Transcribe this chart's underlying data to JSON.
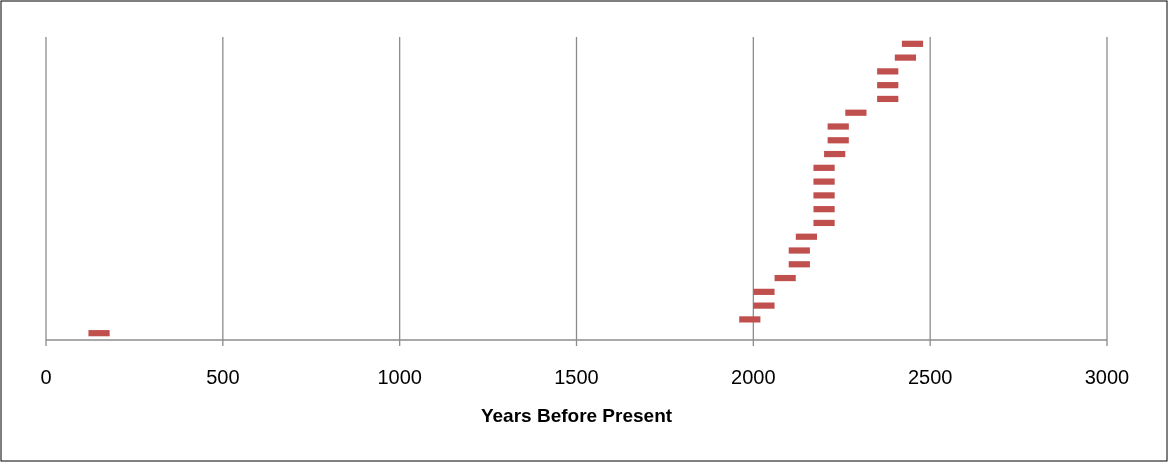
{
  "chart_data": {
    "type": "bar",
    "orientation": "horizontal",
    "xlabel": "Years Before Present",
    "categories": [
      null,
      null,
      null,
      null,
      null,
      null,
      null,
      null,
      null,
      null,
      null,
      null,
      null,
      null,
      null,
      null,
      null,
      null,
      null,
      null,
      null,
      null
    ],
    "base": [
      2420,
      2400,
      2350,
      2350,
      2350,
      2260,
      2210,
      2210,
      2200,
      2170,
      2170,
      2170,
      2170,
      2170,
      2120,
      2100,
      2100,
      2060,
      2000,
      2000,
      1960,
      120
    ],
    "values": [
      60,
      60,
      60,
      60,
      60,
      60,
      60,
      60,
      60,
      60,
      60,
      60,
      60,
      60,
      60,
      60,
      60,
      60,
      60,
      60,
      60,
      60
    ],
    "color": "#c0504d",
    "xlim": [
      0,
      3000
    ],
    "xticks": [
      0,
      500,
      1000,
      1500,
      2000,
      2500,
      3000
    ],
    "grid": "x"
  }
}
